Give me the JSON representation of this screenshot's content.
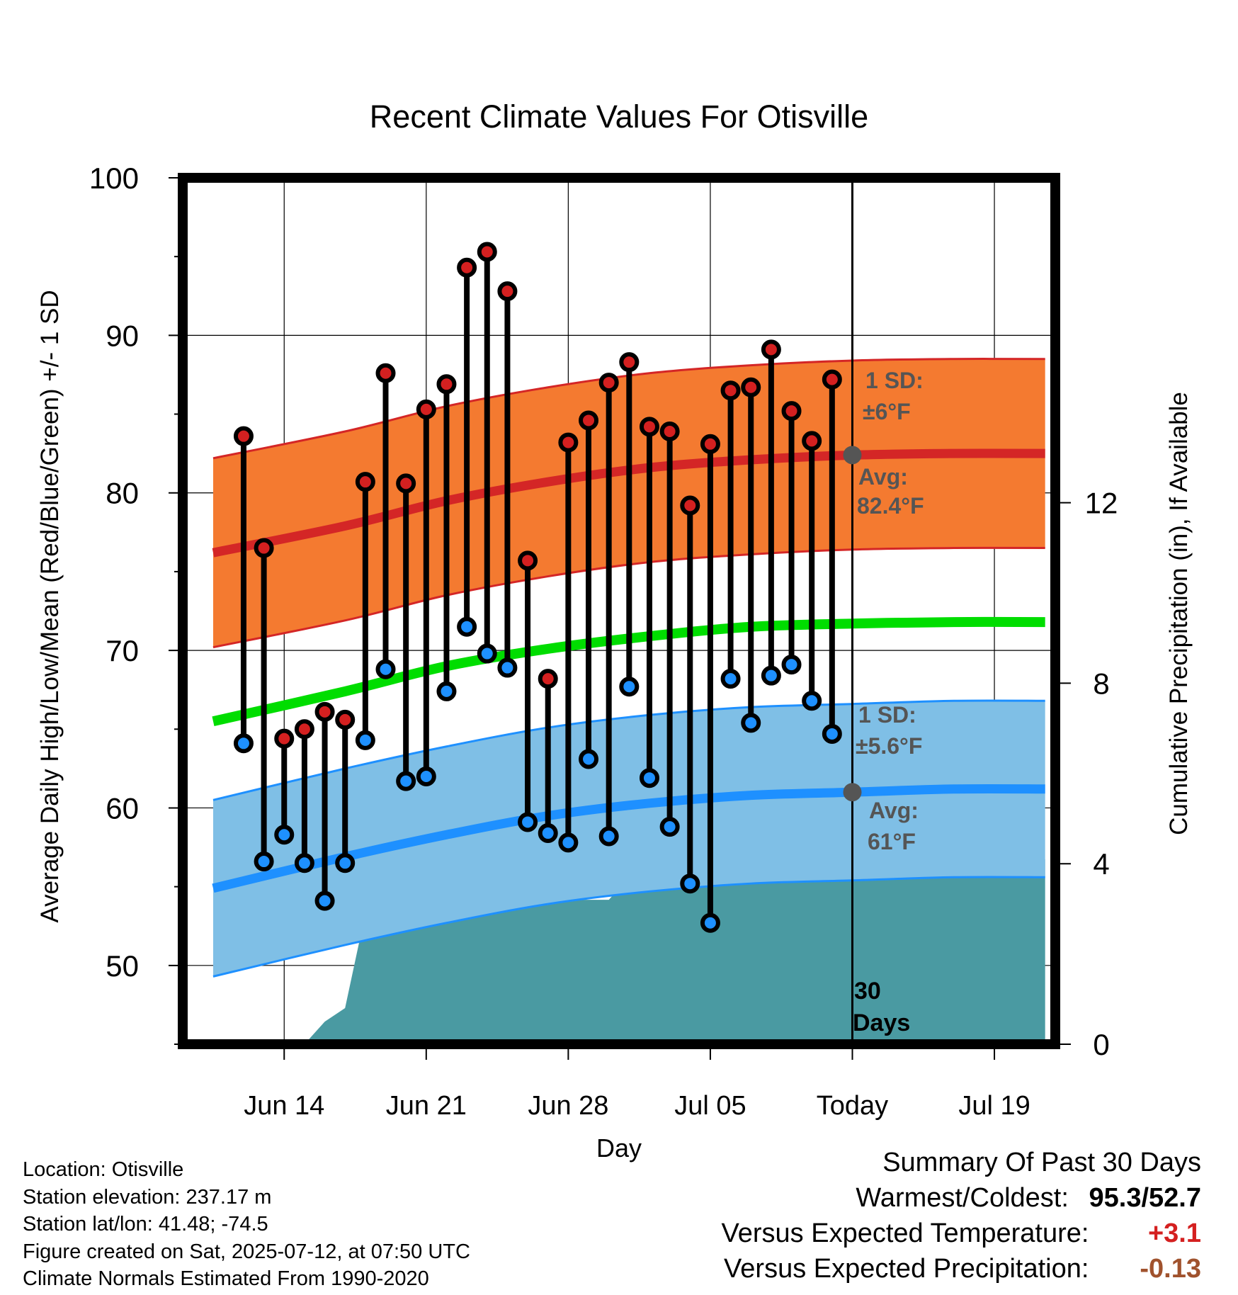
{
  "chart_data": {
    "type": "line",
    "title": "Recent Climate Values For Otisville",
    "xlabel": "Day",
    "ylabel_left": "Average Daily High/Low/Mean (Red/Blue/Green) +/- 1 SD",
    "ylabel_right": "Cumulative Precipitation (in), If Available",
    "x_range_days": [
      -33,
      10
    ],
    "y_left_range": [
      45,
      100
    ],
    "y_left_ticks": [
      50,
      60,
      70,
      80,
      90,
      100
    ],
    "y_right_range": [
      0,
      19.2
    ],
    "y_right_ticks": [
      0,
      4,
      8,
      12
    ],
    "x_ticks": [
      {
        "day": -28,
        "label": "Jun 14"
      },
      {
        "day": -21,
        "label": "Jun 21"
      },
      {
        "day": -14,
        "label": "Jun 28"
      },
      {
        "day": -7,
        "label": "Jul 05"
      },
      {
        "day": 0,
        "label": "Today"
      },
      {
        "day": 7,
        "label": "Jul 19"
      }
    ],
    "today_label_1": "30",
    "today_label_2": "Days",
    "grid": true,
    "daily_x": [
      -30,
      -29,
      -28,
      -27,
      -26,
      -25,
      -24,
      -23,
      -22,
      -21,
      -20,
      -19,
      -18,
      -17,
      -16,
      -15,
      -14,
      -13,
      -12,
      -11,
      -10,
      -9,
      -8,
      -7,
      -6,
      -5,
      -4,
      -3,
      -2,
      -1
    ],
    "daily_high": [
      83.6,
      76.5,
      64.4,
      65.0,
      66.1,
      65.6,
      80.7,
      87.6,
      80.6,
      85.3,
      86.9,
      94.3,
      95.3,
      92.8,
      75.7,
      68.2,
      83.2,
      84.6,
      87.0,
      88.3,
      84.2,
      83.9,
      79.2,
      83.1,
      86.5,
      86.7,
      89.1,
      85.2,
      83.3,
      87.2
    ],
    "daily_low": [
      64.1,
      56.6,
      58.3,
      56.5,
      54.1,
      56.5,
      64.3,
      68.8,
      61.7,
      62.0,
      67.4,
      71.5,
      69.8,
      68.9,
      59.1,
      58.4,
      57.8,
      63.1,
      58.2,
      67.7,
      61.9,
      58.8,
      55.2,
      52.7,
      68.2,
      65.4,
      68.4,
      69.1,
      66.8,
      64.7
    ],
    "normal_x": [
      -31.5,
      -25,
      -20,
      -15,
      -10,
      -5,
      0,
      5,
      9.5
    ],
    "normal_high": [
      76.2,
      77.9,
      79.5,
      80.7,
      81.6,
      82.1,
      82.4,
      82.5,
      82.5
    ],
    "normal_high_sd": 6,
    "normal_low": [
      54.9,
      56.9,
      58.3,
      59.5,
      60.3,
      60.8,
      61.0,
      61.2,
      61.2
    ],
    "normal_low_sd": 5.6,
    "normal_mean": [
      65.5,
      67.4,
      69.0,
      70.1,
      70.9,
      71.5,
      71.7,
      71.8,
      71.8
    ],
    "precip_x": [
      -29,
      -28,
      -27,
      -26,
      -25,
      -24,
      -23,
      -22,
      -21,
      -20,
      -19,
      -18,
      -17,
      -16,
      -15,
      -14,
      -13,
      -12,
      -11,
      -10,
      -9,
      -8,
      -7,
      -6,
      -5,
      -4,
      -3,
      -2,
      -1,
      0,
      9.5
    ],
    "precip_cum": [
      0,
      0,
      0,
      0.5,
      0.8,
      2.9,
      2.9,
      2.9,
      2.9,
      3.0,
      3.0,
      3.0,
      3.0,
      3.2,
      3.2,
      3.2,
      3.2,
      3.2,
      3.7,
      3.7,
      4.1,
      4.1,
      4.1,
      4.1,
      4.1,
      4.1,
      4.1,
      4.1,
      4.1,
      4.1,
      4.1
    ],
    "annotations": {
      "high_sd_1": "1 SD:",
      "high_sd_2": "±6°F",
      "high_avg_1": "Avg:",
      "high_avg_2": "82.4°F",
      "low_sd_1": "1 SD:",
      "low_sd_2": "±5.6°F",
      "low_avg_1": "Avg:",
      "low_avg_2": "61°F"
    },
    "colors": {
      "high_band": "#f47a30",
      "high_line": "#d42626",
      "low_band": "#7fbfe6",
      "low_line": "#1e90ff",
      "mean_line": "#00dd00",
      "precip": "#4a9aa2",
      "high_dot": "#d42020",
      "low_dot": "#1e90ff",
      "annotation": "#555555"
    }
  },
  "meta": {
    "location": "Location: Otisville",
    "elevation": "Station elevation: 237.17 m",
    "latlon": "Station lat/lon: 41.48; -74.5",
    "created": "Figure created on Sat, 2025-07-12, at 07:50 UTC",
    "normals": "Climate Normals Estimated From 1990-2020"
  },
  "summary": {
    "title": "Summary Of Past 30 Days",
    "warm_cold_label": "Warmest/Coldest:",
    "warmest": "95.3",
    "slash": "/",
    "coldest": "52.7",
    "temp_label": "Versus Expected Temperature:",
    "temp_value": "+3.1",
    "precip_label": "Versus Expected Precipitation:",
    "precip_value": "-0.13",
    "temp_color": "#d42020",
    "precip_color": "#a0522d"
  }
}
